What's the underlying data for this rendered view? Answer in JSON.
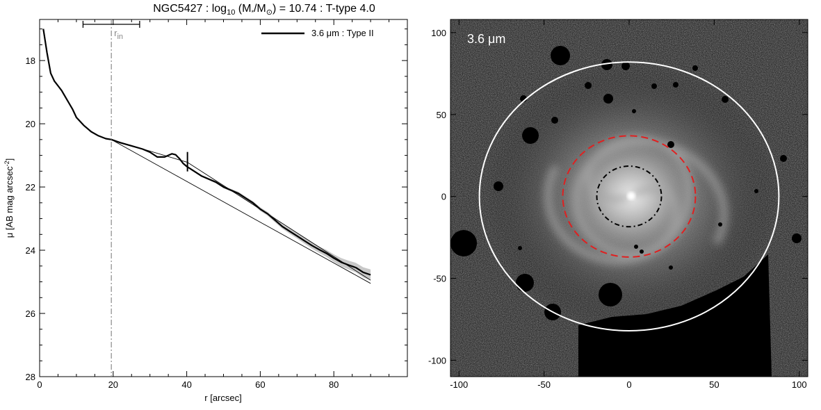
{
  "title": {
    "prefix": "NGC5427 : log",
    "sub": "10",
    "mid1": " (M",
    "mid2": "/M",
    "sun": "⊙",
    "suffix": ") = 10.74 : T-type 4.0"
  },
  "chart_data": [
    {
      "type": "line",
      "xlabel": "r [arcsec]",
      "ylabel_prefix": "μ [AB mag arcsec",
      "ylabel_sup": "-2",
      "ylabel_suffix": "]",
      "xlim": [
        0,
        100
      ],
      "ylim": [
        28,
        16.7
      ],
      "y_inverted": true,
      "xticks": [
        0,
        20,
        40,
        60,
        80
      ],
      "yticks": [
        18,
        20,
        22,
        24,
        26,
        28
      ],
      "legend": {
        "label": "3.6 μm : Type II",
        "placement": "top-right"
      },
      "r_in": {
        "label": "r",
        "sub": "in",
        "x": 19.5,
        "bar_range": [
          11.8,
          27.2
        ],
        "color": "#888888"
      },
      "break_marker": {
        "x": 40.2,
        "y": 21.2
      },
      "series": [
        {
          "name": "3.6 μm : Type II",
          "x": [
            1,
            2,
            3,
            4,
            5,
            6,
            7,
            8,
            9,
            10,
            12,
            14,
            16,
            18,
            19.5,
            22,
            25,
            28,
            30,
            32,
            34,
            36,
            37,
            38,
            39,
            40,
            42,
            44,
            46,
            48,
            50,
            52,
            54,
            56,
            58,
            60,
            62,
            64,
            66,
            68,
            70,
            72,
            74,
            76,
            78,
            80,
            82,
            84,
            86,
            88,
            90
          ],
          "y": [
            17.0,
            17.75,
            18.4,
            18.65,
            18.8,
            18.95,
            19.15,
            19.35,
            19.55,
            19.8,
            20.05,
            20.25,
            20.38,
            20.47,
            20.5,
            20.6,
            20.7,
            20.8,
            20.9,
            21.05,
            21.05,
            20.95,
            20.98,
            21.1,
            21.25,
            21.35,
            21.5,
            21.65,
            21.75,
            21.85,
            22.0,
            22.1,
            22.2,
            22.35,
            22.5,
            22.7,
            22.85,
            23.05,
            23.25,
            23.4,
            23.55,
            23.7,
            23.85,
            23.98,
            24.1,
            24.25,
            24.38,
            24.47,
            24.55,
            24.7,
            24.78
          ],
          "err": [
            0,
            0,
            0,
            0,
            0,
            0,
            0,
            0,
            0,
            0,
            0,
            0,
            0,
            0,
            0,
            0.01,
            0.01,
            0.01,
            0.01,
            0.02,
            0.02,
            0.02,
            0.02,
            0.02,
            0.02,
            0.03,
            0.03,
            0.03,
            0.03,
            0.04,
            0.04,
            0.04,
            0.05,
            0.05,
            0.05,
            0.06,
            0.06,
            0.07,
            0.07,
            0.08,
            0.08,
            0.09,
            0.1,
            0.1,
            0.11,
            0.12,
            0.13,
            0.14,
            0.15,
            0.16,
            0.17
          ]
        },
        {
          "x": [
            19.5,
            40.2
          ],
          "y": [
            20.5,
            21.22
          ]
        },
        {
          "x": [
            40.2,
            90
          ],
          "y": [
            21.22,
            24.95
          ]
        },
        {
          "x": [
            19.5,
            90
          ],
          "y": [
            20.5,
            25.05
          ]
        }
      ]
    },
    {
      "type": "image",
      "panel_label": "3.6 μm",
      "xlim": [
        -105,
        105
      ],
      "ylim": [
        -110,
        108
      ],
      "xticks": [
        -100,
        -50,
        0,
        50,
        100
      ],
      "yticks": [
        -100,
        -50,
        0,
        50,
        100
      ],
      "ellipses": [
        {
          "name": "outer-white",
          "cx": 0,
          "cy": 0,
          "rx": 88,
          "ry": 82,
          "color": "#ffffff",
          "style": "solid"
        },
        {
          "name": "break-red",
          "cx": 0,
          "cy": 0,
          "rx": 39,
          "ry": 37,
          "color": "#e02020",
          "style": "dashed"
        },
        {
          "name": "inner-black",
          "cx": 0,
          "cy": 0,
          "rx": 19,
          "ry": 18.5,
          "color": "#000000",
          "style": "dashdot"
        }
      ]
    }
  ]
}
